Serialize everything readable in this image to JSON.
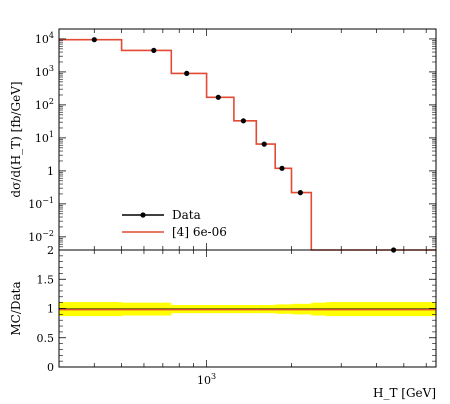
{
  "chart_data": [
    {
      "type": "line",
      "panel": "main",
      "xscale": "log",
      "yscale": "log",
      "xlim": [
        300,
        6500
      ],
      "ylim": [
        0.004,
        20000
      ],
      "ylabel": "dσ/d(H_T) [fb/GeV]",
      "yticks": [
        {
          "value": 10000,
          "base": "10",
          "exp": "4"
        },
        {
          "value": 1000,
          "base": "10",
          "exp": "3"
        },
        {
          "value": 100,
          "base": "10",
          "exp": "2"
        },
        {
          "value": 10,
          "base": "10",
          "exp": "1"
        },
        {
          "value": 1,
          "base": "1",
          "exp": ""
        },
        {
          "value": 0.1,
          "base": "10",
          "exp": "−1"
        },
        {
          "value": 0.01,
          "base": "10",
          "exp": "−2"
        }
      ],
      "legend": {
        "position": "bottom-left",
        "entries": [
          {
            "label": "Data",
            "style": "marker"
          },
          {
            "label": "[4] 6e-06",
            "style": "line"
          }
        ]
      },
      "series": [
        {
          "name": "Data",
          "color": "#000000",
          "x": [
            400,
            650,
            850,
            1100,
            1350,
            1600,
            1850,
            2150,
            4600
          ],
          "y": [
            9500,
            4500,
            900,
            170,
            33,
            6.5,
            1.2,
            0.22,
            0.004
          ]
        },
        {
          "name": "[4] 6e-06",
          "color": "#e34a33",
          "bin_edges": [
            300,
            500,
            750,
            1000,
            1250,
            1500,
            1750,
            2000,
            2350,
            2650,
            6500
          ],
          "values": [
            9500,
            4500,
            900,
            170,
            33,
            6.5,
            1.2,
            0.22,
            0.004,
            0.004
          ]
        }
      ]
    },
    {
      "type": "line",
      "panel": "ratio",
      "xscale": "log",
      "xlim": [
        300,
        6500
      ],
      "ylim": [
        0,
        2
      ],
      "xlabel": "H_T [GeV]",
      "ylabel": "MC/Data",
      "xticks": [
        {
          "value": 1000,
          "base": "10",
          "exp": "3"
        }
      ],
      "yticks": [
        {
          "value": 2,
          "label": "2"
        },
        {
          "value": 1.5,
          "label": "1.5"
        },
        {
          "value": 1,
          "label": "1"
        },
        {
          "value": 0.5,
          "label": "0.5"
        },
        {
          "value": 0,
          "label": "0"
        }
      ],
      "band_color": "#ffff00",
      "line_color": "#e34a33",
      "series": [
        {
          "name": "ratio",
          "bin_edges": [
            300,
            500,
            750,
            1000,
            1250,
            1500,
            1750,
            2000,
            2350,
            2650,
            6500
          ],
          "values": [
            0.98,
            0.98,
            0.98,
            0.98,
            0.98,
            0.98,
            0.98,
            0.98,
            0.98,
            0.98
          ],
          "band_low": [
            0.87,
            0.88,
            0.92,
            0.92,
            0.92,
            0.92,
            0.91,
            0.9,
            0.88,
            0.87
          ],
          "band_high": [
            1.11,
            1.1,
            1.06,
            1.06,
            1.06,
            1.06,
            1.07,
            1.08,
            1.1,
            1.11
          ]
        }
      ]
    }
  ]
}
